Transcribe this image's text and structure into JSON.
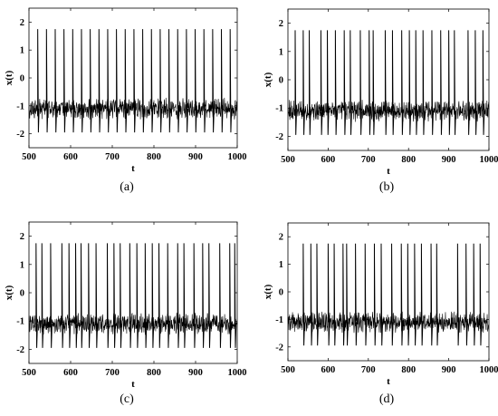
{
  "chart_data": [
    {
      "type": "line",
      "panel_label": "(a)",
      "xlabel": "t",
      "ylabel": "x(t)",
      "xlim": [
        500,
        1000
      ],
      "ylim": [
        -2.5,
        2.5
      ],
      "xticks": [
        500,
        600,
        700,
        800,
        900,
        1000
      ],
      "yticks": [
        2,
        1,
        0,
        -1,
        -2
      ],
      "baseline": -1.1,
      "spike_max": 1.75,
      "spike_min": -1.95,
      "spike_times": [
        521,
        542,
        563,
        584,
        605,
        626,
        647,
        668,
        689,
        710,
        731,
        752,
        773,
        794,
        815,
        836,
        857,
        878,
        899,
        920,
        941,
        962,
        983
      ]
    },
    {
      "type": "line",
      "panel_label": "(b)",
      "xlabel": "t",
      "ylabel": "x(t)",
      "xlim": [
        500,
        1000
      ],
      "ylim": [
        -2.5,
        2.5
      ],
      "xticks": [
        500,
        600,
        700,
        800,
        900,
        1000
      ],
      "yticks": [
        2,
        1,
        0,
        -1,
        -2
      ],
      "baseline": -1.1,
      "spike_max": 1.75,
      "spike_min": -1.95,
      "spike_times": [
        518,
        538,
        553,
        582,
        598,
        618,
        640,
        655,
        680,
        702,
        712,
        742,
        760,
        783,
        802,
        818,
        836,
        858,
        880,
        900,
        914,
        948,
        966,
        985
      ]
    },
    {
      "type": "line",
      "panel_label": "(c)",
      "xlabel": "t",
      "ylabel": "x(t)",
      "xlim": [
        500,
        1000
      ],
      "ylim": [
        -2.5,
        2.5
      ],
      "xticks": [
        500,
        600,
        700,
        800,
        900,
        1000
      ],
      "yticks": [
        2,
        1,
        0,
        -1,
        -2
      ],
      "baseline": -1.1,
      "spike_max": 1.75,
      "spike_min": -1.95,
      "spike_times": [
        517,
        531,
        552,
        579,
        596,
        612,
        625,
        643,
        661,
        688,
        704,
        719,
        742,
        759,
        779,
        796,
        812,
        833,
        857,
        872,
        896,
        917,
        932,
        958,
        982,
        994
      ]
    },
    {
      "type": "line",
      "panel_label": "(d)",
      "xlabel": "t",
      "ylabel": "x(t)",
      "xlim": [
        500,
        1000
      ],
      "ylim": [
        -2.5,
        2.5
      ],
      "xticks": [
        500,
        600,
        700,
        800,
        900,
        1000
      ],
      "yticks": [
        2,
        1,
        0,
        -1,
        -2
      ],
      "baseline": -1.1,
      "spike_max": 1.75,
      "spike_min": -1.95,
      "spike_times": [
        538,
        557,
        572,
        600,
        615,
        637,
        646,
        668,
        692,
        715,
        732,
        758,
        782,
        798,
        815,
        832,
        856,
        870,
        922,
        943,
        962,
        978
      ]
    }
  ]
}
